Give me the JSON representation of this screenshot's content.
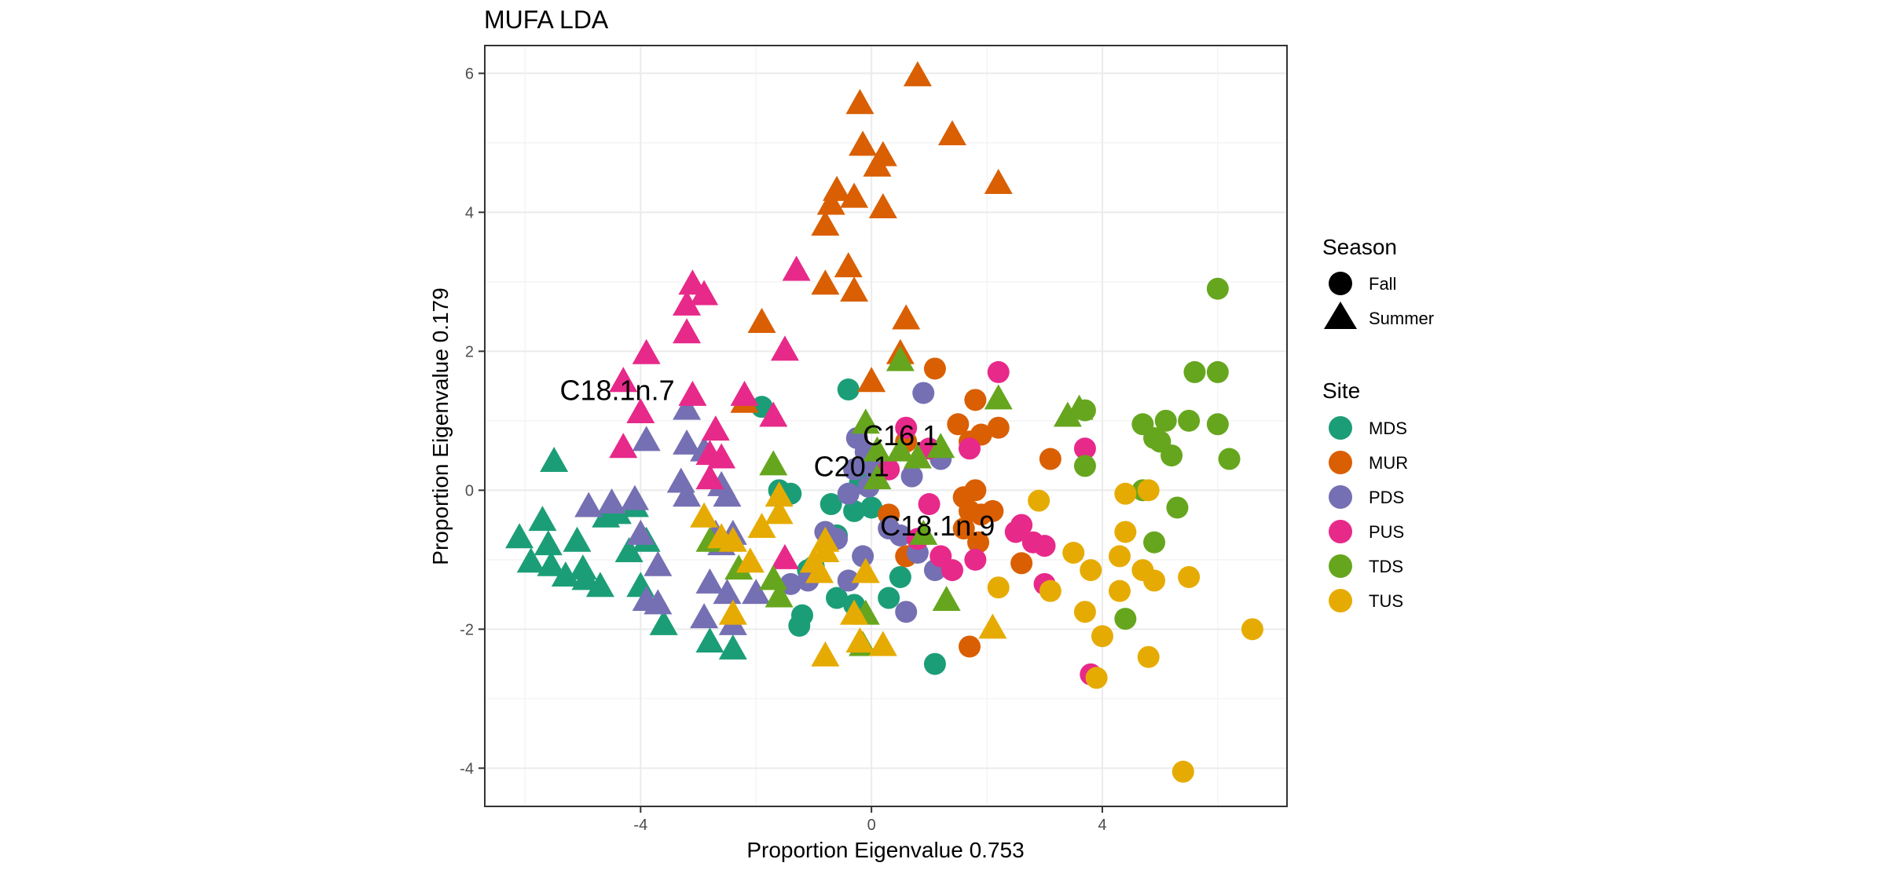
{
  "chart_data": {
    "type": "scatter",
    "title": "MUFA LDA",
    "xlabel": "Proportion Eigenvalue 0.753",
    "ylabel": "Proportion Eigenvalue 0.179",
    "xlim": [
      -6.7,
      7.2
    ],
    "ylim": [
      -4.55,
      6.4
    ],
    "xticks": [
      -4,
      0,
      4
    ],
    "yticks": [
      -4,
      -2,
      0,
      2,
      4,
      6
    ],
    "xtick_labels": [
      "-4",
      "0",
      "4"
    ],
    "ytick_labels": [
      "-4",
      "-2",
      "0",
      "2",
      "4",
      "6"
    ],
    "grid": true,
    "legend_position": "right",
    "legends": {
      "shape": {
        "title": "Season",
        "entries": [
          {
            "label": "Fall",
            "shape": "circle"
          },
          {
            "label": "Summer",
            "shape": "triangle"
          }
        ]
      },
      "color": {
        "title": "Site",
        "entries": [
          {
            "label": "MDS",
            "color": "#1B9E77"
          },
          {
            "label": "MUR",
            "color": "#D95F02"
          },
          {
            "label": "PDS",
            "color": "#7570B3"
          },
          {
            "label": "PUS",
            "color": "#E7298A"
          },
          {
            "label": "TDS",
            "color": "#66A61E"
          },
          {
            "label": "TUS",
            "color": "#E6AB02"
          }
        ]
      }
    },
    "annotations": [
      {
        "text": "C18.1n.7",
        "x": -5.4,
        "y": 1.3
      },
      {
        "text": "C20.1",
        "x": -1.0,
        "y": 0.2
      },
      {
        "text": "C16.1",
        "x": -0.15,
        "y": 0.65
      },
      {
        "text": "C18.1n.9",
        "x": 0.15,
        "y": -0.65
      }
    ],
    "series": [
      {
        "site": "MDS",
        "season": "Fall",
        "points": [
          [
            -1.9,
            1.2
          ],
          [
            -0.4,
            1.45
          ],
          [
            -1.6,
            0.0
          ],
          [
            -1.4,
            -0.05
          ],
          [
            -0.7,
            -0.2
          ],
          [
            -0.3,
            -0.3
          ],
          [
            -0.2,
            0.1
          ],
          [
            0.0,
            -0.25
          ],
          [
            -0.6,
            -0.65
          ],
          [
            -1.0,
            -1.1
          ],
          [
            -1.1,
            -1.15
          ],
          [
            -1.2,
            -1.8
          ],
          [
            -1.25,
            -1.95
          ],
          [
            -0.6,
            -1.55
          ],
          [
            -0.3,
            -1.65
          ],
          [
            0.3,
            -1.55
          ],
          [
            0.5,
            -1.25
          ],
          [
            1.1,
            -2.5
          ]
        ]
      },
      {
        "site": "MDS",
        "season": "Summer",
        "points": [
          [
            -6.1,
            -0.7
          ],
          [
            -5.9,
            -1.05
          ],
          [
            -5.7,
            -0.45
          ],
          [
            -5.6,
            -0.8
          ],
          [
            -5.55,
            -1.1
          ],
          [
            -5.5,
            0.4
          ],
          [
            -5.3,
            -1.25
          ],
          [
            -5.1,
            -0.75
          ],
          [
            -5.0,
            -1.15
          ],
          [
            -4.95,
            -1.3
          ],
          [
            -4.7,
            -1.4
          ],
          [
            -4.6,
            -0.4
          ],
          [
            -4.4,
            -0.35
          ],
          [
            -4.2,
            -0.9
          ],
          [
            -4.1,
            -0.25
          ],
          [
            -4.0,
            -1.4
          ],
          [
            -3.9,
            -0.75
          ],
          [
            -3.6,
            -1.95
          ],
          [
            -2.8,
            -2.2
          ],
          [
            -2.4,
            -2.3
          ]
        ]
      },
      {
        "site": "MUR",
        "season": "Fall",
        "points": [
          [
            1.1,
            1.75
          ],
          [
            1.8,
            1.3
          ],
          [
            1.5,
            0.95
          ],
          [
            1.7,
            0.7
          ],
          [
            1.9,
            0.8
          ],
          [
            2.2,
            0.9
          ],
          [
            0.6,
            0.7
          ],
          [
            1.6,
            -0.1
          ],
          [
            1.7,
            -0.3
          ],
          [
            1.9,
            -0.35
          ],
          [
            2.1,
            -0.3
          ],
          [
            1.8,
            0.0
          ],
          [
            1.6,
            -0.55
          ],
          [
            1.85,
            -0.75
          ],
          [
            0.3,
            -0.35
          ],
          [
            0.6,
            -0.95
          ],
          [
            2.6,
            -1.05
          ],
          [
            3.1,
            0.45
          ],
          [
            1.7,
            -2.25
          ]
        ]
      },
      {
        "site": "MUR",
        "season": "Summer",
        "points": [
          [
            0.8,
            5.95
          ],
          [
            -0.2,
            5.55
          ],
          [
            -0.15,
            4.95
          ],
          [
            0.2,
            4.8
          ],
          [
            0.1,
            4.65
          ],
          [
            1.4,
            5.1
          ],
          [
            2.2,
            4.4
          ],
          [
            -0.6,
            4.3
          ],
          [
            -0.7,
            4.1
          ],
          [
            -0.3,
            4.2
          ],
          [
            0.2,
            4.05
          ],
          [
            -0.8,
            3.8
          ],
          [
            -0.4,
            3.2
          ],
          [
            -0.8,
            2.95
          ],
          [
            -0.3,
            2.85
          ],
          [
            -1.9,
            2.4
          ],
          [
            0.6,
            2.45
          ],
          [
            0.5,
            1.95
          ],
          [
            0.0,
            1.55
          ],
          [
            -2.2,
            1.25
          ]
        ]
      },
      {
        "site": "PDS",
        "season": "Fall",
        "points": [
          [
            0.9,
            1.4
          ],
          [
            -0.25,
            0.75
          ],
          [
            -0.1,
            0.55
          ],
          [
            -0.3,
            0.3
          ],
          [
            0.0,
            0.35
          ],
          [
            1.2,
            0.45
          ],
          [
            0.7,
            0.2
          ],
          [
            -0.05,
            0.05
          ],
          [
            -0.4,
            -0.05
          ],
          [
            0.3,
            -0.55
          ],
          [
            -0.8,
            -0.6
          ],
          [
            -0.6,
            -0.7
          ],
          [
            0.5,
            -0.65
          ],
          [
            -0.15,
            -0.95
          ],
          [
            0.8,
            -0.9
          ],
          [
            1.1,
            -1.15
          ],
          [
            -1.4,
            -1.35
          ],
          [
            -1.1,
            -1.3
          ],
          [
            -0.4,
            -1.3
          ],
          [
            0.6,
            -1.75
          ]
        ]
      },
      {
        "site": "PDS",
        "season": "Summer",
        "points": [
          [
            -4.9,
            -0.25
          ],
          [
            -4.5,
            -0.2
          ],
          [
            -4.1,
            -0.15
          ],
          [
            -4.0,
            -0.65
          ],
          [
            -3.9,
            0.7
          ],
          [
            -3.7,
            -1.1
          ],
          [
            -3.9,
            -1.6
          ],
          [
            -3.7,
            -1.65
          ],
          [
            -3.2,
            1.15
          ],
          [
            -3.2,
            0.65
          ],
          [
            -3.3,
            0.1
          ],
          [
            -3.2,
            -0.1
          ],
          [
            -2.9,
            0.55
          ],
          [
            -2.6,
            0.05
          ],
          [
            -2.5,
            -0.1
          ],
          [
            -2.7,
            -0.65
          ],
          [
            -2.6,
            -0.8
          ],
          [
            -2.4,
            -0.65
          ],
          [
            -2.8,
            -1.35
          ],
          [
            -2.5,
            -1.5
          ],
          [
            -2.0,
            -1.5
          ],
          [
            -2.9,
            -1.85
          ],
          [
            -2.4,
            -1.95
          ]
        ]
      },
      {
        "site": "PUS",
        "season": "Fall",
        "points": [
          [
            2.2,
            1.7
          ],
          [
            0.6,
            0.9
          ],
          [
            1.0,
            0.6
          ],
          [
            1.7,
            0.6
          ],
          [
            0.3,
            0.3
          ],
          [
            1.0,
            -0.2
          ],
          [
            1.2,
            -0.95
          ],
          [
            0.8,
            -0.7
          ],
          [
            1.4,
            -1.15
          ],
          [
            1.8,
            -1.0
          ],
          [
            2.5,
            -0.6
          ],
          [
            2.6,
            -0.5
          ],
          [
            2.8,
            -0.75
          ],
          [
            3.0,
            -0.8
          ],
          [
            3.7,
            0.6
          ],
          [
            3.0,
            -1.35
          ],
          [
            3.8,
            -2.65
          ]
        ]
      },
      {
        "site": "PUS",
        "season": "Summer",
        "points": [
          [
            -3.1,
            2.95
          ],
          [
            -2.9,
            2.8
          ],
          [
            -3.2,
            2.65
          ],
          [
            -3.2,
            2.25
          ],
          [
            -3.9,
            1.95
          ],
          [
            -1.3,
            3.15
          ],
          [
            -1.5,
            2.0
          ],
          [
            -4.3,
            1.55
          ],
          [
            -4.0,
            1.1
          ],
          [
            -3.1,
            1.35
          ],
          [
            -2.2,
            1.35
          ],
          [
            -1.7,
            1.05
          ],
          [
            -2.7,
            0.85
          ],
          [
            -2.8,
            0.5
          ],
          [
            -2.6,
            0.45
          ],
          [
            -4.3,
            0.6
          ],
          [
            -2.8,
            0.15
          ],
          [
            -1.5,
            -1.0
          ]
        ]
      },
      {
        "site": "TDS",
        "season": "Fall",
        "points": [
          [
            6.0,
            2.9
          ],
          [
            5.6,
            1.7
          ],
          [
            6.0,
            1.7
          ],
          [
            3.7,
            1.15
          ],
          [
            4.7,
            0.95
          ],
          [
            5.1,
            1.0
          ],
          [
            5.5,
            1.0
          ],
          [
            6.0,
            0.95
          ],
          [
            4.9,
            0.75
          ],
          [
            5.0,
            0.7
          ],
          [
            5.2,
            0.5
          ],
          [
            6.2,
            0.45
          ],
          [
            3.7,
            0.35
          ],
          [
            4.7,
            0.0
          ],
          [
            5.3,
            -0.25
          ],
          [
            4.9,
            -0.75
          ],
          [
            4.4,
            -1.85
          ]
        ]
      },
      {
        "site": "TDS",
        "season": "Summer",
        "points": [
          [
            0.5,
            1.85
          ],
          [
            2.2,
            1.3
          ],
          [
            3.4,
            1.05
          ],
          [
            3.6,
            1.15
          ],
          [
            -0.1,
            0.95
          ],
          [
            0.1,
            0.55
          ],
          [
            0.5,
            0.55
          ],
          [
            1.2,
            0.6
          ],
          [
            0.8,
            0.45
          ],
          [
            -1.7,
            0.35
          ],
          [
            0.1,
            0.15
          ],
          [
            0.9,
            -0.65
          ],
          [
            -2.8,
            -0.75
          ],
          [
            -2.3,
            -1.15
          ],
          [
            -1.7,
            -1.3
          ],
          [
            -1.6,
            -1.55
          ],
          [
            1.3,
            -1.6
          ],
          [
            -0.1,
            -1.8
          ],
          [
            -0.15,
            -2.25
          ]
        ]
      },
      {
        "site": "TUS",
        "season": "Summer",
        "points": [
          [
            -2.9,
            -0.4
          ],
          [
            -1.6,
            -0.1
          ],
          [
            -1.6,
            -0.35
          ],
          [
            -1.9,
            -0.55
          ],
          [
            -2.4,
            -0.75
          ],
          [
            -2.6,
            -0.7
          ],
          [
            -2.1,
            -1.05
          ],
          [
            -1.0,
            -1.05
          ],
          [
            -0.9,
            -1.2
          ],
          [
            -0.8,
            -0.75
          ],
          [
            -0.8,
            -0.9
          ],
          [
            -0.1,
            -1.2
          ],
          [
            -0.3,
            -1.8
          ],
          [
            -2.4,
            -1.8
          ],
          [
            2.1,
            -2.0
          ],
          [
            0.2,
            -2.25
          ],
          [
            -0.2,
            -2.2
          ],
          [
            -0.8,
            -2.4
          ]
        ]
      },
      {
        "site": "TUS",
        "season": "Fall",
        "points": [
          [
            2.9,
            -0.15
          ],
          [
            3.5,
            -0.9
          ],
          [
            4.4,
            -0.05
          ],
          [
            4.8,
            0.0
          ],
          [
            4.4,
            -0.6
          ],
          [
            4.3,
            -0.95
          ],
          [
            3.8,
            -1.15
          ],
          [
            4.7,
            -1.15
          ],
          [
            4.9,
            -1.3
          ],
          [
            5.5,
            -1.25
          ],
          [
            4.3,
            -1.45
          ],
          [
            3.1,
            -1.45
          ],
          [
            2.2,
            -1.4
          ],
          [
            3.7,
            -1.75
          ],
          [
            4.0,
            -2.1
          ],
          [
            6.6,
            -2.0
          ],
          [
            4.8,
            -2.4
          ],
          [
            3.9,
            -2.7
          ],
          [
            5.4,
            -4.05
          ]
        ]
      }
    ]
  }
}
